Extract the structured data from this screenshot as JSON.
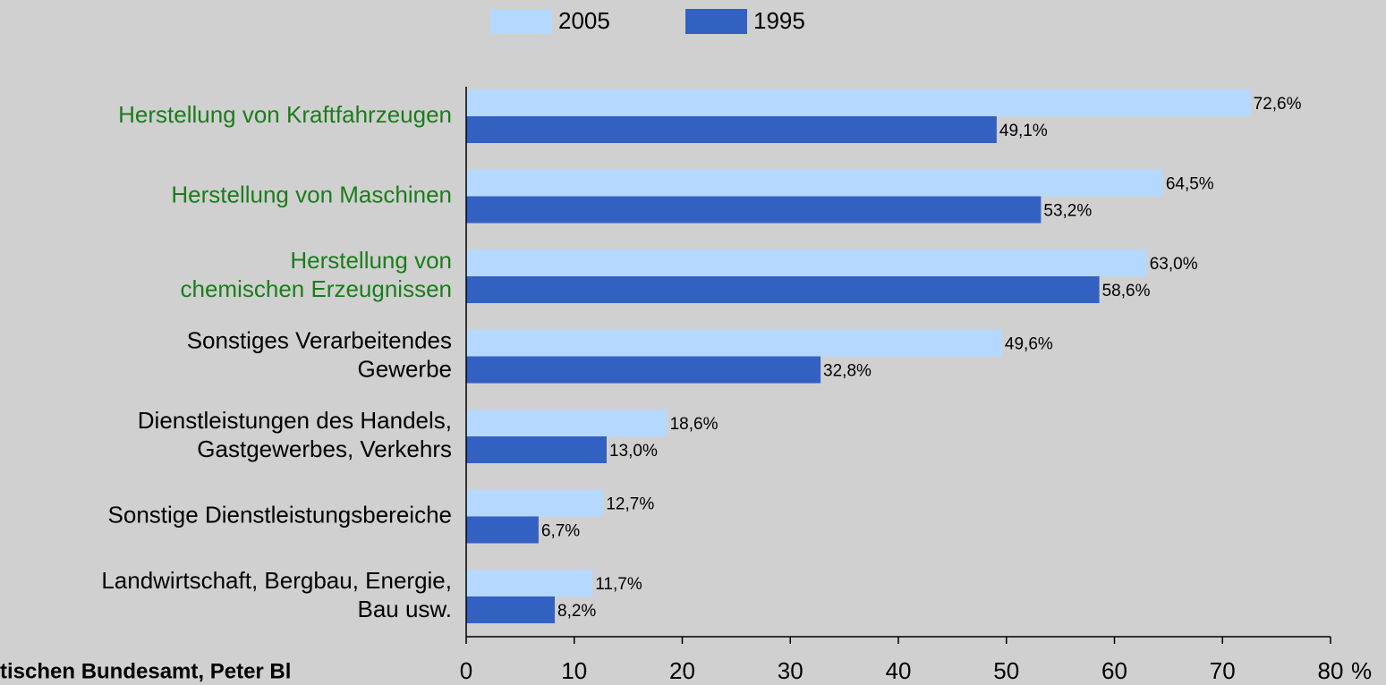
{
  "chart_data": {
    "type": "hbar",
    "categories": [
      "Herstellung von Kraftfahrzeugen",
      "Herstellung von Maschinen",
      "Herstellung von\nchemischen Erzeugnissen",
      "Sonstiges Verarbeitendes\nGewerbe",
      "Dienstleistungen des Handels,\nGastgewerbes, Verkehrs",
      "Sonstige Dienstleistungsbereiche",
      "Landwirtschaft, Bergbau, Energie,\nBau usw."
    ],
    "category_colors": [
      "#1a7d1a",
      "#1a7d1a",
      "#1a7d1a",
      "#000000",
      "#000000",
      "#000000",
      "#000000"
    ],
    "series": [
      {
        "name": "2005",
        "color": "#b5d8ff",
        "values": [
          72.6,
          64.5,
          63.0,
          49.6,
          18.6,
          12.7,
          11.7
        ],
        "value_labels": [
          "72,6%",
          "64,5%",
          "63,0%",
          "49,6%",
          "18,6%",
          "12,7%",
          "11,7%"
        ]
      },
      {
        "name": "1995",
        "color": "#3361c2",
        "values": [
          49.1,
          53.2,
          58.6,
          32.8,
          13.0,
          6.7,
          8.2
        ],
        "value_labels": [
          "49,1%",
          "53,2%",
          "58,6%",
          "32,8%",
          "13,0%",
          "6,7%",
          "8,2%"
        ]
      }
    ],
    "xlim": [
      0,
      80
    ],
    "xticks": [
      0,
      10,
      20,
      30,
      40,
      50,
      60,
      70,
      80
    ],
    "xlabel": "%",
    "legend": "top",
    "source": "tischen Bundesamt, Peter Bl"
  }
}
